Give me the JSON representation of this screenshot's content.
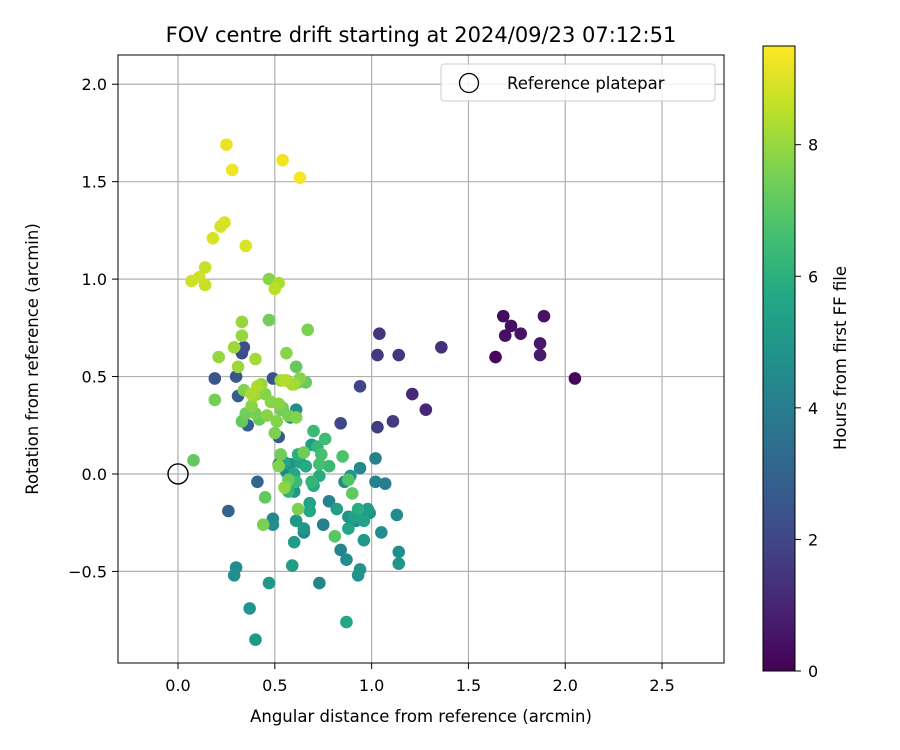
{
  "chart_data": {
    "type": "scatter",
    "title": "FOV centre drift starting at 2024/09/23 07:12:51",
    "xlabel": "Angular distance from reference (arcmin)",
    "ylabel": "Rotation from reference (arcmin)",
    "xlim": [
      -0.31,
      2.82
    ],
    "ylim": [
      -0.97,
      2.15
    ],
    "xticks": [
      "0.0",
      "0.5",
      "1.0",
      "1.5",
      "2.0",
      "2.5"
    ],
    "xtick_values": [
      0,
      0.5,
      1.0,
      1.5,
      2.0,
      2.5
    ],
    "yticks": [
      "−0.5",
      "0.0",
      "0.5",
      "1.0",
      "1.5",
      "2.0"
    ],
    "ytick_values": [
      -0.5,
      0,
      0.5,
      1.0,
      1.5,
      2.0
    ],
    "grid": true,
    "legend": {
      "location": "upper right",
      "entries": [
        "Reference platepar"
      ]
    },
    "reference_point": {
      "x": 0.0,
      "y": 0.0,
      "label": "Reference platepar"
    },
    "colorbar": {
      "label": "Hours from first FF file",
      "colormap": "viridis",
      "range": [
        0,
        9.5
      ],
      "ticks": [
        "0",
        "2",
        "4",
        "6",
        "8"
      ],
      "tick_values": [
        0,
        2,
        4,
        6,
        8
      ]
    },
    "series": [
      {
        "points": [
          [
            2.05,
            0.49,
            0.2
          ],
          [
            1.64,
            0.6,
            0.2
          ],
          [
            1.68,
            0.81,
            0.3
          ],
          [
            1.69,
            0.71,
            0.4
          ],
          [
            1.72,
            0.76,
            0.4
          ],
          [
            1.77,
            0.72,
            0.5
          ],
          [
            1.87,
            0.67,
            0.6
          ],
          [
            1.87,
            0.61,
            0.7
          ],
          [
            1.89,
            0.81,
            0.5
          ],
          [
            1.36,
            0.65,
            1.3
          ],
          [
            1.28,
            0.33,
            1.0
          ],
          [
            1.21,
            0.41,
            1.1
          ],
          [
            1.14,
            0.61,
            1.5
          ],
          [
            1.11,
            0.27,
            1.6
          ],
          [
            1.04,
            0.72,
            1.4
          ],
          [
            1.03,
            0.61,
            1.6
          ],
          [
            1.03,
            0.24,
            1.7
          ],
          [
            0.94,
            0.45,
            1.9
          ],
          [
            0.84,
            0.26,
            2.0
          ],
          [
            0.33,
            0.62,
            2.2
          ],
          [
            0.34,
            0.65,
            2.3
          ],
          [
            0.19,
            0.49,
            2.5
          ],
          [
            0.3,
            0.5,
            2.6
          ],
          [
            0.31,
            0.4,
            2.8
          ],
          [
            0.36,
            0.25,
            2.9
          ],
          [
            0.49,
            0.49,
            2.4
          ],
          [
            0.52,
            0.19,
            2.6
          ],
          [
            0.41,
            -0.04,
            3.2
          ],
          [
            0.26,
            -0.19,
            3.0
          ],
          [
            0.3,
            -0.48,
            4.6
          ],
          [
            0.29,
            -0.52,
            4.7
          ],
          [
            0.37,
            -0.69,
            4.9
          ],
          [
            0.4,
            -0.85,
            5.0
          ],
          [
            0.47,
            -0.56,
            5.0
          ],
          [
            0.49,
            -0.23,
            4.4
          ],
          [
            0.49,
            -0.26,
            4.6
          ],
          [
            0.52,
            0.05,
            4.1
          ],
          [
            0.56,
            0.01,
            4.3
          ],
          [
            0.58,
            0.29,
            4.5
          ],
          [
            0.61,
            0.33,
            4.6
          ],
          [
            0.58,
            0.05,
            4.8
          ],
          [
            0.6,
            -0.09,
            4.9
          ],
          [
            0.61,
            -0.24,
            5.0
          ],
          [
            0.6,
            -0.35,
            5.2
          ],
          [
            0.59,
            -0.47,
            5.3
          ],
          [
            0.65,
            -0.28,
            5.0
          ],
          [
            0.65,
            -0.3,
            4.2
          ],
          [
            0.68,
            -0.15,
            5.5
          ],
          [
            0.68,
            -0.19,
            5.6
          ],
          [
            0.69,
            0.15,
            5.2
          ],
          [
            0.7,
            -0.06,
            5.8
          ],
          [
            0.73,
            -0.01,
            5.9
          ],
          [
            0.73,
            -0.56,
            4.3
          ],
          [
            0.75,
            -0.26,
            4.1
          ],
          [
            0.78,
            -0.14,
            4.2
          ],
          [
            0.82,
            -0.18,
            5.3
          ],
          [
            0.84,
            -0.39,
            4.3
          ],
          [
            0.86,
            -0.04,
            4.5
          ],
          [
            0.87,
            -0.44,
            4.6
          ],
          [
            0.87,
            -0.76,
            5.6
          ],
          [
            0.88,
            -0.22,
            4.8
          ],
          [
            0.89,
            -0.01,
            4.9
          ],
          [
            0.92,
            -0.24,
            4.7
          ],
          [
            0.93,
            -0.52,
            4.8
          ],
          [
            0.94,
            0.03,
            4.4
          ],
          [
            0.94,
            -0.49,
            4.9
          ],
          [
            0.96,
            -0.34,
            5.1
          ],
          [
            0.98,
            -0.18,
            5.2
          ],
          [
            0.99,
            -0.2,
            4.9
          ],
          [
            1.02,
            -0.04,
            4.2
          ],
          [
            1.02,
            0.08,
            4.1
          ],
          [
            1.05,
            -0.3,
            4.6
          ],
          [
            1.07,
            -0.05,
            4.0
          ],
          [
            1.13,
            -0.21,
            4.5
          ],
          [
            1.14,
            -0.4,
            4.7
          ],
          [
            1.14,
            -0.46,
            4.9
          ],
          [
            0.95,
            -0.23,
            4.8
          ],
          [
            0.91,
            -0.22,
            5.4
          ],
          [
            0.88,
            -0.28,
            5.6
          ],
          [
            0.93,
            -0.18,
            5.9
          ],
          [
            0.96,
            -0.24,
            5.5
          ],
          [
            0.55,
            0.06,
            5.6
          ],
          [
            0.57,
            -0.09,
            6.2
          ],
          [
            0.6,
            0.0,
            5.7
          ],
          [
            0.62,
            0.1,
            6.0
          ],
          [
            0.63,
            0.06,
            5.4
          ],
          [
            0.66,
            0.04,
            5.8
          ],
          [
            0.69,
            -0.04,
            6.2
          ],
          [
            0.7,
            0.22,
            6.4
          ],
          [
            0.72,
            0.14,
            6.3
          ],
          [
            0.73,
            0.05,
            6.6
          ],
          [
            0.74,
            0.1,
            6.7
          ],
          [
            0.76,
            0.18,
            6.5
          ],
          [
            0.78,
            0.04,
            6.4
          ],
          [
            0.85,
            0.09,
            6.8
          ],
          [
            0.88,
            -0.03,
            6.9
          ],
          [
            0.9,
            -0.1,
            7.1
          ],
          [
            0.81,
            -0.32,
            7.0
          ],
          [
            0.45,
            -0.12,
            7.2
          ],
          [
            0.44,
            -0.26,
            7.6
          ],
          [
            0.62,
            -0.18,
            7.6
          ],
          [
            0.53,
            0.1,
            7.4
          ],
          [
            0.57,
            -0.03,
            7.3
          ],
          [
            0.61,
            -0.04,
            6.4
          ],
          [
            0.08,
            0.07,
            7.2
          ],
          [
            0.19,
            0.38,
            7.5
          ],
          [
            0.33,
            0.27,
            7.2
          ],
          [
            0.35,
            0.31,
            7.4
          ],
          [
            0.34,
            0.43,
            7.7
          ],
          [
            0.38,
            0.35,
            7.8
          ],
          [
            0.4,
            0.31,
            7.5
          ],
          [
            0.41,
            0.41,
            7.9
          ],
          [
            0.42,
            0.28,
            7.3
          ],
          [
            0.43,
            0.46,
            8.0
          ],
          [
            0.45,
            0.41,
            7.7
          ],
          [
            0.46,
            0.3,
            7.8
          ],
          [
            0.47,
            0.79,
            7.4
          ],
          [
            0.48,
            0.37,
            7.8
          ],
          [
            0.5,
            0.21,
            7.6
          ],
          [
            0.51,
            0.27,
            7.7
          ],
          [
            0.52,
            0.36,
            7.8
          ],
          [
            0.53,
            0.48,
            8.0
          ],
          [
            0.53,
            0.33,
            7.4
          ],
          [
            0.54,
            0.34,
            7.5
          ],
          [
            0.56,
            0.48,
            8.0
          ],
          [
            0.56,
            0.62,
            7.8
          ],
          [
            0.57,
            0.3,
            7.5
          ],
          [
            0.59,
            0.46,
            8.0
          ],
          [
            0.61,
            0.29,
            7.7
          ],
          [
            0.61,
            0.55,
            7.2
          ],
          [
            0.62,
            0.47,
            7.3
          ],
          [
            0.63,
            0.49,
            7.8
          ],
          [
            0.65,
            0.11,
            7.4
          ],
          [
            0.66,
            0.47,
            7.3
          ],
          [
            0.67,
            0.74,
            7.6
          ],
          [
            0.52,
            0.04,
            7.7
          ],
          [
            0.55,
            -0.07,
            7.9
          ],
          [
            0.47,
            1.0,
            7.8
          ],
          [
            0.21,
            0.6,
            8.0
          ],
          [
            0.29,
            0.65,
            8.1
          ],
          [
            0.31,
            0.55,
            8.1
          ],
          [
            0.33,
            0.71,
            8.0
          ],
          [
            0.33,
            0.78,
            8.0
          ],
          [
            0.39,
            0.4,
            8.1
          ],
          [
            0.4,
            0.59,
            8.2
          ],
          [
            0.38,
            0.41,
            8.3
          ],
          [
            0.41,
            0.45,
            8.3
          ],
          [
            0.5,
            0.95,
            8.5
          ],
          [
            0.52,
            0.98,
            8.3
          ],
          [
            0.55,
            0.48,
            8.4
          ],
          [
            0.6,
            0.46,
            8.2
          ],
          [
            0.07,
            0.99,
            8.8
          ],
          [
            0.11,
            1.01,
            8.8
          ],
          [
            0.14,
            1.06,
            8.7
          ],
          [
            0.14,
            0.97,
            8.7
          ],
          [
            0.18,
            1.21,
            8.9
          ],
          [
            0.22,
            1.27,
            8.9
          ],
          [
            0.24,
            1.29,
            8.9
          ],
          [
            0.35,
            1.17,
            9.0
          ],
          [
            0.25,
            1.69,
            9.2
          ],
          [
            0.28,
            1.56,
            9.3
          ],
          [
            0.54,
            1.61,
            9.3
          ],
          [
            0.63,
            1.52,
            9.4
          ]
        ]
      }
    ]
  }
}
